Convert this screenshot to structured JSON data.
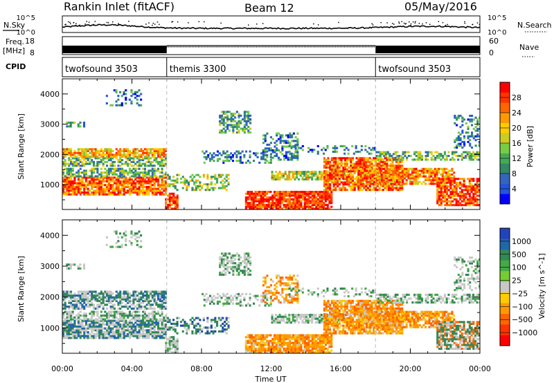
{
  "header": {
    "station": "Rankin Inlet (fitACF)",
    "beam": "Beam 12",
    "date": "05/May/2016"
  },
  "top_panels": {
    "nsky_label": "N.Sky",
    "nsky_ticks": [
      "10^5",
      "10^0"
    ],
    "nsearch_label": "N.Search",
    "nsearch_ticks": [
      "10^5",
      "10^0"
    ],
    "freq_label": "Freq.",
    "freq_unit": "[MHz]",
    "freq_ticks": [
      "18",
      "8"
    ],
    "nave_label": "Nave",
    "nave_ticks": [
      "60",
      "0"
    ],
    "cpid_label": "CPID",
    "cpid_segments": [
      {
        "label": "twofsound 3503",
        "start_h": 0,
        "end_h": 6
      },
      {
        "label": "themis 3300",
        "start_h": 6,
        "end_h": 18
      },
      {
        "label": "twofsound 3503",
        "start_h": 18,
        "end_h": 24
      }
    ]
  },
  "chart_data": [
    {
      "type": "heatmap",
      "xlabel": "",
      "ylabel": "Slant Range [km]",
      "x_range_hours": [
        0,
        24
      ],
      "ylim": [
        180,
        4500
      ],
      "yticks": [
        "1000",
        "2000",
        "3000",
        "4000"
      ],
      "colorbar_label": "Power [dB]",
      "colorbar_ticks": [
        "4",
        "8",
        "12",
        "16",
        "20",
        "24",
        "28"
      ],
      "colorbar_range": [
        0,
        30
      ],
      "colorbar_colors": [
        "#0000ff",
        "#2255dd",
        "#3366bb",
        "#338866",
        "#44aa55",
        "#77cc44",
        "#cccc22",
        "#ffcc00",
        "#ff9900",
        "#ff6600",
        "#ff3300",
        "#ff0000"
      ]
    },
    {
      "type": "heatmap",
      "xlabel": "Time UT",
      "ylabel": "Slant Range [km]",
      "x_range_hours": [
        0,
        24
      ],
      "ylim": [
        180,
        4500
      ],
      "yticks": [
        "1000",
        "2000",
        "3000",
        "4000"
      ],
      "xticks": [
        "00:00",
        "04:00",
        "08:00",
        "12:00",
        "16:00",
        "20:00",
        "00:00"
      ],
      "colorbar_label": "Velocity [m s^-1]",
      "colorbar_ticks": [
        "1000",
        "500",
        "100",
        "25",
        "−25",
        "−100",
        "−500",
        "−1000"
      ],
      "colorbar_colors": [
        "#2244bb",
        "#2266aa",
        "#338855",
        "#44aa44",
        "#77cc33",
        "#c8c8c8",
        "#ffcc00",
        "#ff9900",
        "#ff6600",
        "#ff3300",
        "#ff0000"
      ]
    }
  ]
}
